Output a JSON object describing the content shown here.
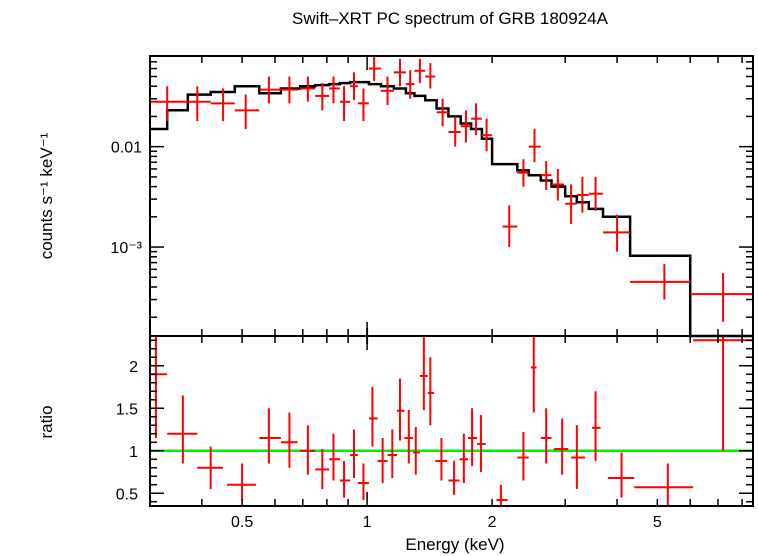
{
  "chart_data": [
    {
      "type": "scatter",
      "title": "Swift–XRT PC spectrum of GRB 180924A",
      "ylabel": "counts s⁻¹ keV⁻¹",
      "xlabel": "",
      "x_scale": "log",
      "y_scale": "log",
      "xlim": [
        0.3,
        8.5
      ],
      "ylim": [
        0.00013,
        0.08
      ],
      "y_tick_labels": [
        {
          "value": 0.01,
          "label": "0.01"
        },
        {
          "value": 0.001,
          "label": "10⁻³"
        }
      ],
      "series": [
        {
          "role": "data",
          "color": "#ff0000",
          "points": [
            {
              "x": 0.33,
              "y": 0.028,
              "xlo": 0.3,
              "xhi": 0.37,
              "ylo": 0.018,
              "yhi": 0.04
            },
            {
              "x": 0.39,
              "y": 0.028,
              "xlo": 0.37,
              "xhi": 0.42,
              "ylo": 0.018,
              "yhi": 0.04
            },
            {
              "x": 0.45,
              "y": 0.027,
              "xlo": 0.42,
              "xhi": 0.48,
              "ylo": 0.018,
              "yhi": 0.038
            },
            {
              "x": 0.51,
              "y": 0.023,
              "xlo": 0.48,
              "xhi": 0.55,
              "ylo": 0.015,
              "yhi": 0.033
            },
            {
              "x": 0.58,
              "y": 0.037,
              "xlo": 0.55,
              "xhi": 0.62,
              "ylo": 0.027,
              "yhi": 0.05
            },
            {
              "x": 0.65,
              "y": 0.037,
              "xlo": 0.62,
              "xhi": 0.68,
              "ylo": 0.027,
              "yhi": 0.05
            },
            {
              "x": 0.72,
              "y": 0.038,
              "xlo": 0.69,
              "xhi": 0.75,
              "ylo": 0.028,
              "yhi": 0.05
            },
            {
              "x": 0.78,
              "y": 0.032,
              "xlo": 0.75,
              "xhi": 0.81,
              "ylo": 0.023,
              "yhi": 0.043
            },
            {
              "x": 0.83,
              "y": 0.038,
              "xlo": 0.81,
              "xhi": 0.86,
              "ylo": 0.027,
              "yhi": 0.05
            },
            {
              "x": 0.88,
              "y": 0.028,
              "xlo": 0.86,
              "xhi": 0.91,
              "ylo": 0.018,
              "yhi": 0.04
            },
            {
              "x": 0.93,
              "y": 0.04,
              "xlo": 0.91,
              "xhi": 0.95,
              "ylo": 0.029,
              "yhi": 0.055
            },
            {
              "x": 0.98,
              "y": 0.027,
              "xlo": 0.95,
              "xhi": 1.01,
              "ylo": 0.018,
              "yhi": 0.038
            },
            {
              "x": 1.04,
              "y": 0.06,
              "xlo": 1.01,
              "xhi": 1.08,
              "ylo": 0.045,
              "yhi": 0.08
            },
            {
              "x": 1.12,
              "y": 0.036,
              "xlo": 1.08,
              "xhi": 1.16,
              "ylo": 0.026,
              "yhi": 0.05
            },
            {
              "x": 1.2,
              "y": 0.055,
              "xlo": 1.16,
              "xhi": 1.24,
              "ylo": 0.04,
              "yhi": 0.075
            },
            {
              "x": 1.27,
              "y": 0.042,
              "xlo": 1.24,
              "xhi": 1.3,
              "ylo": 0.03,
              "yhi": 0.058
            },
            {
              "x": 1.34,
              "y": 0.057,
              "xlo": 1.3,
              "xhi": 1.38,
              "ylo": 0.043,
              "yhi": 0.075
            },
            {
              "x": 1.42,
              "y": 0.05,
              "xlo": 1.38,
              "xhi": 1.46,
              "ylo": 0.038,
              "yhi": 0.068
            },
            {
              "x": 1.52,
              "y": 0.022,
              "xlo": 1.47,
              "xhi": 1.57,
              "ylo": 0.016,
              "yhi": 0.03
            },
            {
              "x": 1.63,
              "y": 0.014,
              "xlo": 1.57,
              "xhi": 1.68,
              "ylo": 0.01,
              "yhi": 0.02
            },
            {
              "x": 1.73,
              "y": 0.016,
              "xlo": 1.68,
              "xhi": 1.78,
              "ylo": 0.011,
              "yhi": 0.023
            },
            {
              "x": 1.83,
              "y": 0.019,
              "xlo": 1.78,
              "xhi": 1.89,
              "ylo": 0.013,
              "yhi": 0.027
            },
            {
              "x": 1.94,
              "y": 0.013,
              "xlo": 1.89,
              "xhi": 2.0,
              "ylo": 0.009,
              "yhi": 0.019
            },
            {
              "x": 2.2,
              "y": 0.0016,
              "xlo": 2.12,
              "xhi": 2.3,
              "ylo": 0.001,
              "yhi": 0.0026
            },
            {
              "x": 2.38,
              "y": 0.0055,
              "xlo": 2.3,
              "xhi": 2.45,
              "ylo": 0.004,
              "yhi": 0.0075
            },
            {
              "x": 2.53,
              "y": 0.01,
              "xlo": 2.45,
              "xhi": 2.62,
              "ylo": 0.007,
              "yhi": 0.015
            },
            {
              "x": 2.7,
              "y": 0.0052,
              "xlo": 2.62,
              "xhi": 2.78,
              "ylo": 0.0037,
              "yhi": 0.0072
            },
            {
              "x": 2.88,
              "y": 0.0042,
              "xlo": 2.78,
              "xhi": 2.98,
              "ylo": 0.0029,
              "yhi": 0.006
            },
            {
              "x": 3.1,
              "y": 0.0027,
              "xlo": 3.0,
              "xhi": 3.2,
              "ylo": 0.0017,
              "yhi": 0.0042
            },
            {
              "x": 3.3,
              "y": 0.0033,
              "xlo": 3.2,
              "xhi": 3.42,
              "ylo": 0.0022,
              "yhi": 0.005
            },
            {
              "x": 3.55,
              "y": 0.0034,
              "xlo": 3.42,
              "xhi": 3.7,
              "ylo": 0.0023,
              "yhi": 0.005
            },
            {
              "x": 4.0,
              "y": 0.0014,
              "xlo": 3.7,
              "xhi": 4.3,
              "ylo": 0.0009,
              "yhi": 0.0021
            },
            {
              "x": 5.2,
              "y": 0.00045,
              "xlo": 4.3,
              "xhi": 6.0,
              "ylo": 0.0003,
              "yhi": 0.00068
            },
            {
              "x": 7.2,
              "y": 0.00034,
              "xlo": 6.0,
              "xhi": 8.5,
              "ylo": 0.00018,
              "yhi": 0.00055
            }
          ]
        },
        {
          "role": "model",
          "color": "#000000",
          "step_x": [
            0.3,
            0.33,
            0.37,
            0.42,
            0.48,
            0.55,
            0.62,
            0.69,
            0.75,
            0.81,
            0.86,
            0.91,
            0.95,
            1.01,
            1.08,
            1.16,
            1.24,
            1.3,
            1.38,
            1.47,
            1.57,
            1.68,
            1.78,
            1.89,
            2.0,
            2.3,
            2.45,
            2.62,
            2.78,
            3.0,
            3.2,
            3.42,
            3.7,
            4.3,
            6.0,
            8.5
          ],
          "step_y": [
            0.015,
            0.023,
            0.033,
            0.035,
            0.04,
            0.034,
            0.038,
            0.04,
            0.041,
            0.042,
            0.043,
            0.044,
            0.044,
            0.042,
            0.04,
            0.038,
            0.034,
            0.032,
            0.029,
            0.024,
            0.02,
            0.017,
            0.015,
            0.012,
            0.0067,
            0.0058,
            0.0052,
            0.0046,
            0.004,
            0.0032,
            0.0028,
            0.0024,
            0.002,
            0.00082,
            0.0001
          ]
        }
      ]
    },
    {
      "type": "scatter",
      "xlabel": "Energy (keV)",
      "ylabel": "ratio",
      "x_scale": "log",
      "y_scale": "linear",
      "xlim": [
        0.3,
        8.5
      ],
      "ylim": [
        0.35,
        2.35
      ],
      "x_tick_labels": [
        {
          "value": 0.5,
          "label": "0.5"
        },
        {
          "value": 1,
          "label": "1"
        },
        {
          "value": 2,
          "label": "2"
        },
        {
          "value": 5,
          "label": "5"
        }
      ],
      "y_tick_labels": [
        {
          "value": 0.5,
          "label": "0.5"
        },
        {
          "value": 1,
          "label": "1"
        },
        {
          "value": 1.5,
          "label": "1.5"
        },
        {
          "value": 2,
          "label": "2"
        }
      ],
      "reference_line": {
        "y": 1,
        "color": "#00ee00"
      },
      "series": [
        {
          "role": "ratio",
          "color": "#ff0000",
          "points": [
            {
              "x": 0.31,
              "y": 1.9,
              "xlo": 0.3,
              "xhi": 0.33,
              "ylo": 1.15,
              "yhi": 2.35
            },
            {
              "x": 0.36,
              "y": 1.2,
              "xlo": 0.33,
              "xhi": 0.39,
              "ylo": 0.85,
              "yhi": 1.65
            },
            {
              "x": 0.42,
              "y": 0.8,
              "xlo": 0.39,
              "xhi": 0.45,
              "ylo": 0.55,
              "yhi": 1.05
            },
            {
              "x": 0.5,
              "y": 0.6,
              "xlo": 0.46,
              "xhi": 0.54,
              "ylo": 0.42,
              "yhi": 0.85
            },
            {
              "x": 0.58,
              "y": 1.15,
              "xlo": 0.55,
              "xhi": 0.62,
              "ylo": 0.85,
              "yhi": 1.5
            },
            {
              "x": 0.65,
              "y": 1.1,
              "xlo": 0.62,
              "xhi": 0.68,
              "ylo": 0.8,
              "yhi": 1.45
            },
            {
              "x": 0.72,
              "y": 1.0,
              "xlo": 0.69,
              "xhi": 0.75,
              "ylo": 0.72,
              "yhi": 1.3
            },
            {
              "x": 0.78,
              "y": 0.78,
              "xlo": 0.75,
              "xhi": 0.81,
              "ylo": 0.55,
              "yhi": 1.02
            },
            {
              "x": 0.83,
              "y": 0.9,
              "xlo": 0.81,
              "xhi": 0.86,
              "ylo": 0.65,
              "yhi": 1.2
            },
            {
              "x": 0.88,
              "y": 0.65,
              "xlo": 0.86,
              "xhi": 0.91,
              "ylo": 0.45,
              "yhi": 0.88
            },
            {
              "x": 0.93,
              "y": 0.95,
              "xlo": 0.91,
              "xhi": 0.95,
              "ylo": 0.68,
              "yhi": 1.25
            },
            {
              "x": 0.98,
              "y": 0.62,
              "xlo": 0.95,
              "xhi": 1.01,
              "ylo": 0.42,
              "yhi": 0.85
            },
            {
              "x": 1.03,
              "y": 1.38,
              "xlo": 1.01,
              "xhi": 1.06,
              "ylo": 1.05,
              "yhi": 1.75
            },
            {
              "x": 1.09,
              "y": 0.88,
              "xlo": 1.06,
              "xhi": 1.12,
              "ylo": 0.62,
              "yhi": 1.15
            },
            {
              "x": 1.15,
              "y": 0.95,
              "xlo": 1.12,
              "xhi": 1.18,
              "ylo": 0.68,
              "yhi": 1.25
            },
            {
              "x": 1.2,
              "y": 1.47,
              "xlo": 1.18,
              "xhi": 1.23,
              "ylo": 1.12,
              "yhi": 1.85
            },
            {
              "x": 1.26,
              "y": 1.15,
              "xlo": 1.23,
              "xhi": 1.29,
              "ylo": 0.85,
              "yhi": 1.48
            },
            {
              "x": 1.31,
              "y": 0.98,
              "xlo": 1.29,
              "xhi": 1.34,
              "ylo": 0.72,
              "yhi": 1.28
            },
            {
              "x": 1.37,
              "y": 1.88,
              "xlo": 1.34,
              "xhi": 1.4,
              "ylo": 1.48,
              "yhi": 2.35
            },
            {
              "x": 1.42,
              "y": 1.68,
              "xlo": 1.4,
              "xhi": 1.45,
              "ylo": 1.3,
              "yhi": 2.1
            },
            {
              "x": 1.51,
              "y": 0.88,
              "xlo": 1.46,
              "xhi": 1.56,
              "ylo": 0.65,
              "yhi": 1.15
            },
            {
              "x": 1.62,
              "y": 0.65,
              "xlo": 1.57,
              "xhi": 1.67,
              "ylo": 0.48,
              "yhi": 0.88
            },
            {
              "x": 1.71,
              "y": 0.9,
              "xlo": 1.67,
              "xhi": 1.75,
              "ylo": 0.62,
              "yhi": 1.2
            },
            {
              "x": 1.79,
              "y": 1.15,
              "xlo": 1.75,
              "xhi": 1.84,
              "ylo": 0.82,
              "yhi": 1.5
            },
            {
              "x": 1.88,
              "y": 1.08,
              "xlo": 1.84,
              "xhi": 1.93,
              "ylo": 0.75,
              "yhi": 1.42
            },
            {
              "x": 2.1,
              "y": 0.42,
              "xlo": 2.05,
              "xhi": 2.18,
              "ylo": 0.35,
              "yhi": 0.6
            },
            {
              "x": 2.38,
              "y": 0.92,
              "xlo": 2.3,
              "xhi": 2.45,
              "ylo": 0.65,
              "yhi": 1.22
            },
            {
              "x": 2.52,
              "y": 1.98,
              "xlo": 2.48,
              "xhi": 2.56,
              "ylo": 1.45,
              "yhi": 2.35
            },
            {
              "x": 2.7,
              "y": 1.15,
              "xlo": 2.62,
              "xhi": 2.78,
              "ylo": 0.85,
              "yhi": 1.5
            },
            {
              "x": 2.95,
              "y": 1.02,
              "xlo": 2.82,
              "xhi": 3.05,
              "ylo": 0.72,
              "yhi": 1.38
            },
            {
              "x": 3.2,
              "y": 0.92,
              "xlo": 3.1,
              "xhi": 3.35,
              "ylo": 0.55,
              "yhi": 1.3
            },
            {
              "x": 3.55,
              "y": 1.27,
              "xlo": 3.48,
              "xhi": 3.65,
              "ylo": 0.88,
              "yhi": 1.7
            },
            {
              "x": 4.1,
              "y": 0.68,
              "xlo": 3.8,
              "xhi": 4.4,
              "ylo": 0.45,
              "yhi": 0.98
            },
            {
              "x": 5.3,
              "y": 0.57,
              "xlo": 4.4,
              "xhi": 6.1,
              "ylo": 0.35,
              "yhi": 0.85
            },
            {
              "x": 7.2,
              "y": 2.3,
              "xlo": 6.1,
              "xhi": 8.5,
              "ylo": 1.0,
              "yhi": 2.35
            }
          ]
        }
      ]
    }
  ]
}
